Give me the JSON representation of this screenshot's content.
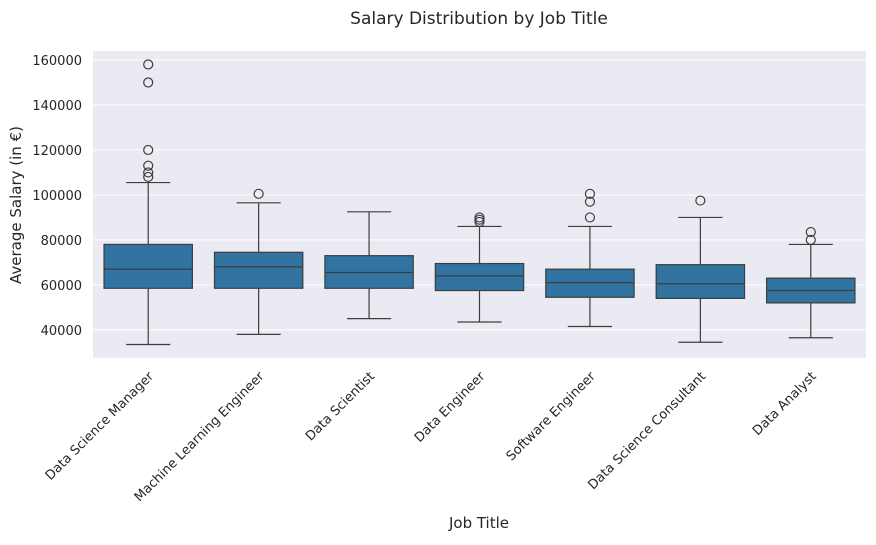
{
  "chart_data": {
    "type": "box",
    "title": "Salary Distribution by Job Title",
    "xlabel": "Job Title",
    "ylabel": "Average Salary (in €)",
    "ylim": [
      27500,
      164000
    ],
    "yticks": [
      40000,
      60000,
      80000,
      100000,
      120000,
      140000,
      160000
    ],
    "grid": true,
    "colors": {
      "plot_background": "#eaeaf2",
      "box_fill": "#3274a1",
      "line": "#3d3d3d",
      "grid": "#ffffff"
    },
    "categories": [
      "Data Science Manager",
      "Machine Learning Engineer",
      "Data Scientist",
      "Data Engineer",
      "Software Engineer",
      "Data Science Consultant",
      "Data Analyst"
    ],
    "boxes": [
      {
        "whisker_low": 33500,
        "q1": 58500,
        "median": 67000,
        "q3": 78000,
        "whisker_high": 105500,
        "outliers": [
          108000,
          110000,
          113000,
          120000,
          150000,
          158000
        ]
      },
      {
        "whisker_low": 38000,
        "q1": 58500,
        "median": 68000,
        "q3": 74500,
        "whisker_high": 96500,
        "outliers": [
          100500
        ]
      },
      {
        "whisker_low": 45000,
        "q1": 58500,
        "median": 65500,
        "q3": 73000,
        "whisker_high": 92500,
        "outliers": []
      },
      {
        "whisker_low": 43500,
        "q1": 57500,
        "median": 64000,
        "q3": 69500,
        "whisker_high": 86000,
        "outliers": [
          88000,
          89000,
          90000
        ]
      },
      {
        "whisker_low": 41500,
        "q1": 54500,
        "median": 61000,
        "q3": 67000,
        "whisker_high": 86000,
        "outliers": [
          90000,
          97000,
          100500
        ]
      },
      {
        "whisker_low": 34500,
        "q1": 54000,
        "median": 60500,
        "q3": 69000,
        "whisker_high": 90000,
        "outliers": [
          97500
        ]
      },
      {
        "whisker_low": 36500,
        "q1": 52000,
        "median": 57500,
        "q3": 63000,
        "whisker_high": 78000,
        "outliers": [
          80000,
          83500
        ]
      }
    ]
  }
}
